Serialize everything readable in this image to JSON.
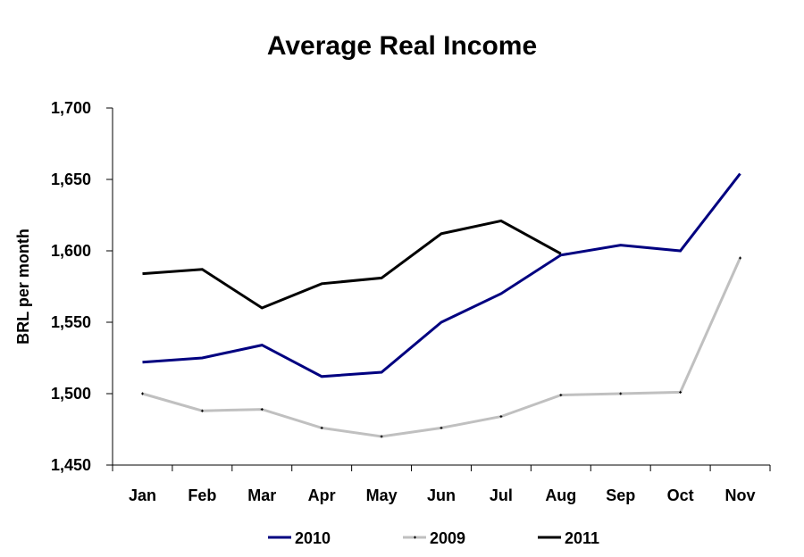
{
  "chart_data": {
    "type": "line",
    "title": "Average Real Income",
    "xlabel": "",
    "ylabel": "BRL per month",
    "ylim": [
      1450,
      1700
    ],
    "yticks": [
      1450,
      1500,
      1550,
      1600,
      1650,
      1700
    ],
    "ytick_labels": [
      "1,450",
      "1,500",
      "1,550",
      "1,600",
      "1,650",
      "1,700"
    ],
    "categories": [
      "Jan",
      "Feb",
      "Mar",
      "Apr",
      "May",
      "Jun",
      "Jul",
      "Aug",
      "Sep",
      "Oct",
      "Nov"
    ],
    "grid": false,
    "legend_position": "bottom",
    "series": [
      {
        "name": "2010",
        "color": "#000080",
        "marker": "none",
        "values": [
          1522,
          1525,
          1534,
          1512,
          1515,
          1550,
          1570,
          1597,
          1604,
          1600,
          1654
        ]
      },
      {
        "name": "2009",
        "color": "#c0c0c0",
        "marker": "small-plus",
        "values": [
          1500,
          1488,
          1489,
          1476,
          1470,
          1476,
          1484,
          1499,
          1500,
          1501,
          1595
        ]
      },
      {
        "name": "2011",
        "color": "#000000",
        "marker": "none",
        "values": [
          1584,
          1587,
          1560,
          1577,
          1581,
          1612,
          1621,
          1598
        ]
      }
    ]
  }
}
